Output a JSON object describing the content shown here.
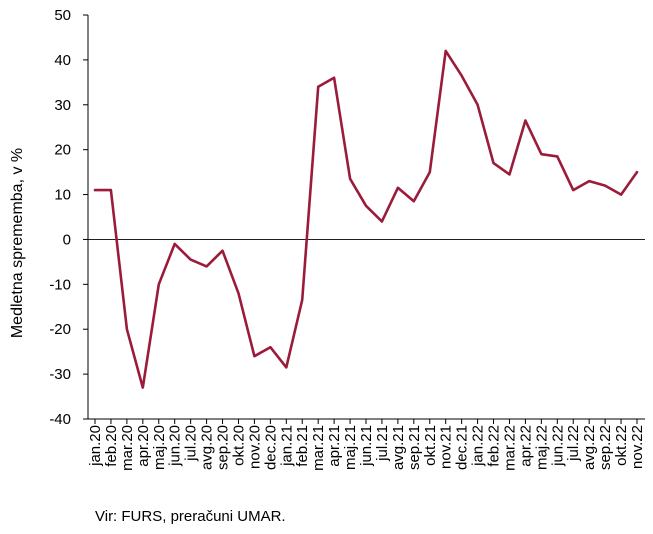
{
  "chart_data": {
    "type": "line",
    "title": "",
    "xlabel": "",
    "ylabel": "Medletna sprememba, v %",
    "ylim": [
      -40,
      50
    ],
    "yticks": [
      -40,
      -30,
      -20,
      -10,
      0,
      10,
      20,
      30,
      40,
      50
    ],
    "grid": false,
    "categories": [
      "jan.20",
      "feb.20",
      "mar.20",
      "apr.20",
      "maj.20",
      "jun.20",
      "jul.20",
      "avg.20",
      "sep.20",
      "okt.20",
      "nov.20",
      "dec.20",
      "jan.21",
      "feb.21",
      "mar.21",
      "apr.21",
      "maj.21",
      "jun.21",
      "jul.21",
      "avg.21",
      "sep.21",
      "okt.21",
      "nov.21",
      "dec.21",
      "jan.22",
      "feb.22",
      "mar.22",
      "apr.22",
      "maj.22",
      "jun.22",
      "jul.22",
      "avg.22",
      "sep.22",
      "okt.22",
      "nov.22"
    ],
    "series": [
      {
        "name": "",
        "color": "#9b1b3a",
        "values": [
          11,
          11,
          -20,
          -33,
          -10,
          -1,
          -4.5,
          -6,
          -2.5,
          -12,
          -26,
          -24,
          -28.5,
          -13.5,
          34,
          36,
          13.5,
          7.5,
          4,
          11.5,
          8.5,
          15,
          42,
          36.5,
          30,
          17,
          14.5,
          26.5,
          19,
          18.5,
          11,
          13,
          12,
          10,
          15
        ]
      }
    ]
  },
  "source_text": "Vir: FURS, preračuni UMAR."
}
